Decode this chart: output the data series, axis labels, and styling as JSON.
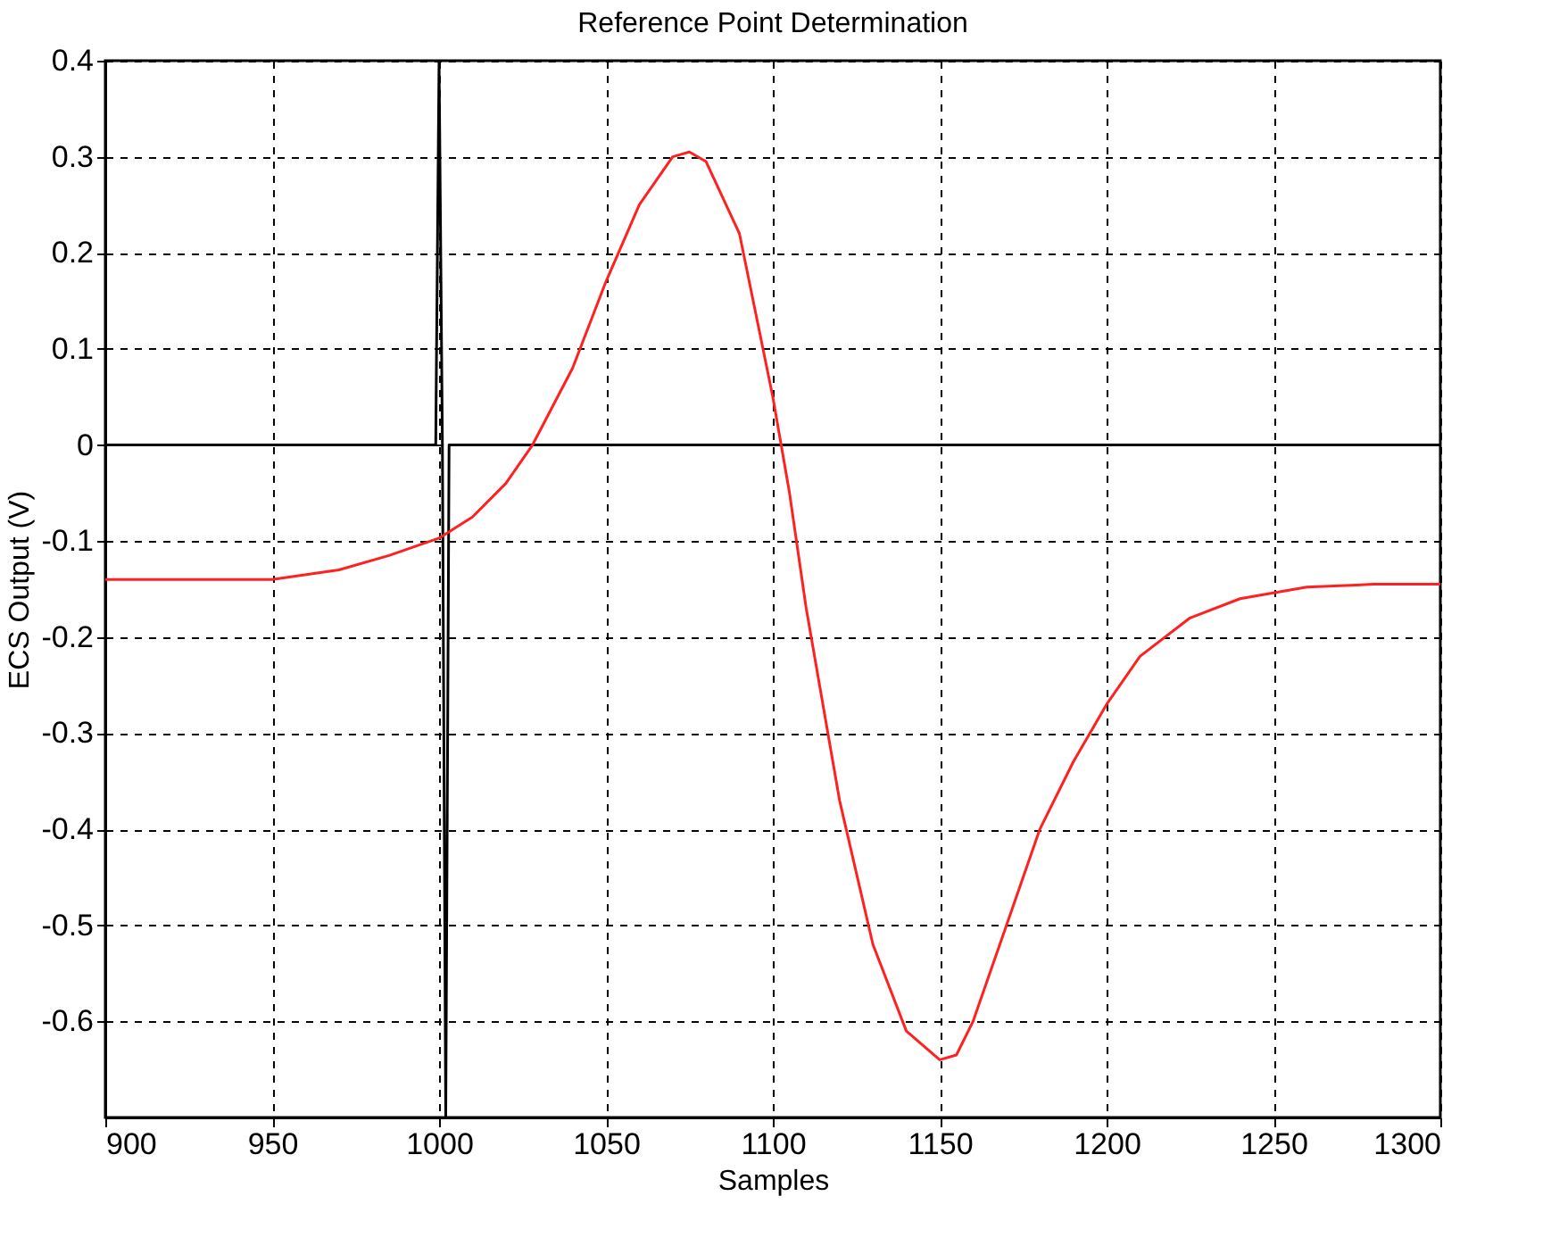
{
  "chart_data": {
    "type": "line",
    "title": "Reference Point Determination",
    "xlabel": "Samples",
    "ylabel": "ECS Output (V)",
    "xlim": [
      900,
      1300
    ],
    "xticks": [
      900,
      950,
      1000,
      1050,
      1100,
      1150,
      1200,
      1250,
      1300
    ],
    "ylim": [
      -0.7,
      0.4
    ],
    "yticks": [
      -0.6,
      -0.5,
      -0.4,
      -0.3,
      -0.2,
      -0.1,
      0,
      0.1,
      0.2,
      0.3,
      0.4
    ],
    "grid": true,
    "marker": "none",
    "line_style": "solid",
    "series": [
      {
        "color": "#000000",
        "x": [
          900,
          999,
          1000,
          1001,
          1002,
          1003,
          1300
        ],
        "values": [
          0,
          0,
          0.4,
          0,
          -0.7,
          0,
          0
        ]
      },
      {
        "color": "#ff2020",
        "x": [
          900,
          950,
          970,
          985,
          1000,
          1010,
          1020,
          1028,
          1040,
          1050,
          1060,
          1070,
          1075,
          1080,
          1090,
          1100,
          1105,
          1110,
          1120,
          1130,
          1140,
          1150,
          1155,
          1160,
          1170,
          1180,
          1190,
          1200,
          1210,
          1225,
          1240,
          1260,
          1280,
          1300
        ],
        "values": [
          -0.14,
          -0.14,
          -0.13,
          -0.115,
          -0.097,
          -0.075,
          -0.04,
          0,
          0.08,
          0.17,
          0.25,
          0.3,
          0.305,
          0.295,
          0.22,
          0.05,
          -0.05,
          -0.17,
          -0.37,
          -0.52,
          -0.61,
          -0.64,
          -0.635,
          -0.6,
          -0.5,
          -0.4,
          -0.33,
          -0.27,
          -0.22,
          -0.18,
          -0.16,
          -0.148,
          -0.145,
          -0.145
        ]
      }
    ]
  }
}
